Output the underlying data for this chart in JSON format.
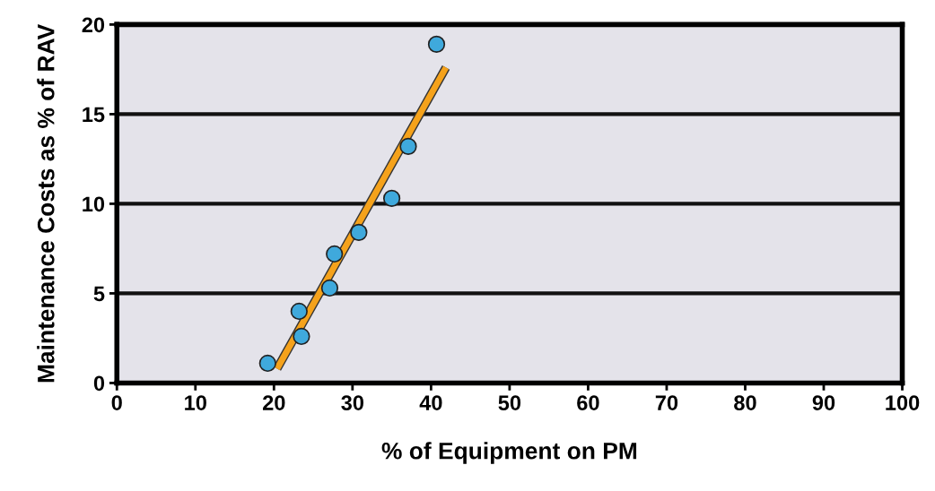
{
  "chart_data": {
    "type": "scatter",
    "xlabel": "% of Equipment on PM",
    "ylabel": "Maintenance Costs as % of RAV",
    "xlim": [
      0,
      100
    ],
    "xticks": [
      0,
      10,
      20,
      30,
      40,
      50,
      60,
      70,
      80,
      90,
      100
    ],
    "ylim": [
      0,
      20
    ],
    "yticks": [
      0,
      5,
      10,
      15,
      20
    ],
    "grid": "y",
    "series": [
      {
        "marker": "circle",
        "color": "#3fa9dc",
        "x": [
          19.2,
          23.5,
          23.2,
          27.1,
          27.7,
          30.8,
          35.0,
          37.1,
          40.7
        ],
        "values": [
          1.1,
          2.6,
          4.0,
          5.3,
          7.2,
          8.4,
          10.3,
          13.2,
          18.9
        ]
      },
      {
        "type": "line",
        "color": "#f5a21b",
        "x": [
          20.4,
          41.9
        ],
        "values": [
          0.8,
          17.6
        ]
      }
    ]
  }
}
